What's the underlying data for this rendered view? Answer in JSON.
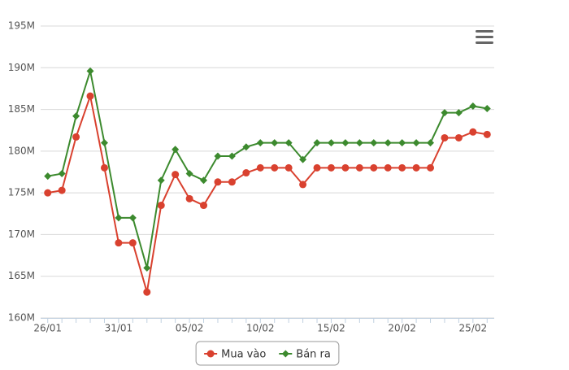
{
  "chart_data": {
    "type": "line",
    "categories": [
      "26/01",
      null,
      null,
      null,
      null,
      "31/01",
      null,
      null,
      null,
      null,
      "05/02",
      null,
      null,
      null,
      null,
      "10/02",
      null,
      null,
      null,
      null,
      "15/02",
      null,
      null,
      null,
      null,
      "20/02",
      null,
      null,
      null,
      null,
      "25/02",
      null
    ],
    "series": [
      {
        "name": "Mua vào",
        "color": "#d9412f",
        "marker": "circle",
        "values": [
          175.0,
          175.3,
          181.7,
          186.6,
          178.0,
          169.0,
          169.0,
          163.1,
          173.5,
          177.2,
          174.3,
          173.5,
          176.3,
          176.3,
          177.4,
          178,
          178,
          178,
          176,
          178,
          178,
          178,
          178,
          178,
          178,
          178,
          178,
          178,
          181.6,
          181.6,
          182.3,
          182.0
        ]
      },
      {
        "name": "Bán ra",
        "color": "#3c8a2e",
        "marker": "diamond",
        "values": [
          177.0,
          177.3,
          184.2,
          189.6,
          181.0,
          172.0,
          172.0,
          166.0,
          176.5,
          180.2,
          177.3,
          176.5,
          179.4,
          179.4,
          180.5,
          181,
          181,
          181,
          179,
          181,
          181,
          181,
          181,
          181,
          181,
          181,
          181,
          181,
          184.6,
          184.6,
          185.4,
          185.1
        ]
      }
    ],
    "ylim": [
      160,
      195
    ],
    "yticks": [
      {
        "value": 160,
        "label": "160M"
      },
      {
        "value": 165,
        "label": "165M"
      },
      {
        "value": 170,
        "label": "170M"
      },
      {
        "value": 175,
        "label": "175M"
      },
      {
        "value": 180,
        "label": "180M"
      },
      {
        "value": 185,
        "label": "185M"
      },
      {
        "value": 190,
        "label": "190M"
      },
      {
        "value": 195,
        "label": "195M"
      }
    ],
    "grid": true,
    "legend": "bottom"
  }
}
